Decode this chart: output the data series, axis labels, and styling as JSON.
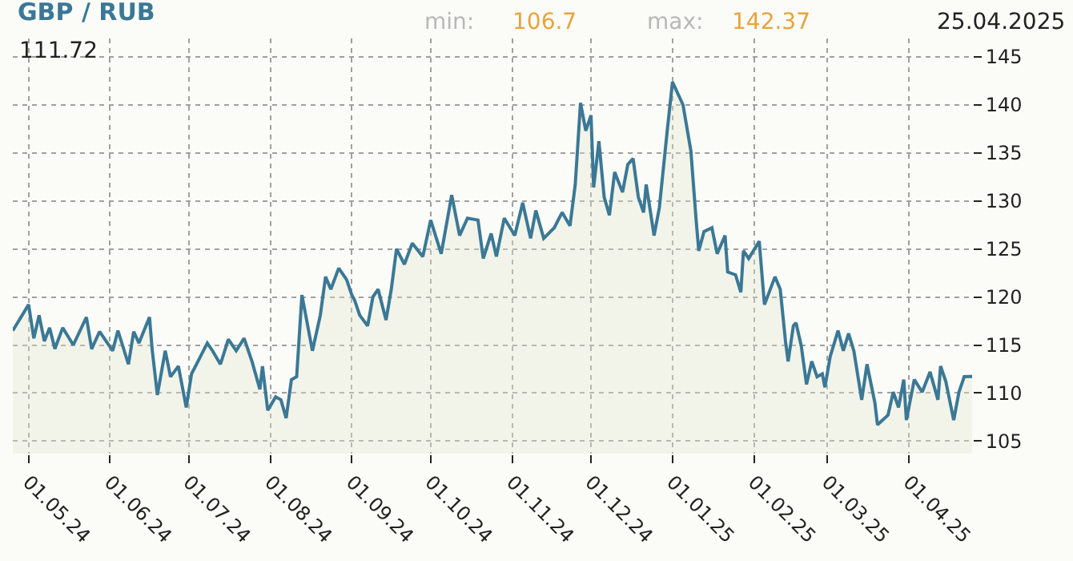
{
  "chart_data": {
    "type": "area",
    "title": "GBP / RUB",
    "annotations": [
      "min:",
      "106.7",
      "max:",
      "142.37",
      "25.04.2025",
      "111.72"
    ],
    "x": [
      "2024-04-25",
      "2024-05-01",
      "2024-05-03",
      "2024-05-05",
      "2024-05-07",
      "2024-05-09",
      "2024-05-11",
      "2024-05-14",
      "2024-05-18",
      "2024-05-23",
      "2024-05-25",
      "2024-05-28",
      "2024-06-02",
      "2024-06-04",
      "2024-06-08",
      "2024-06-10",
      "2024-06-12",
      "2024-06-16",
      "2024-06-17",
      "2024-06-19",
      "2024-06-22",
      "2024-06-24",
      "2024-06-27",
      "2024-06-30",
      "2024-07-02",
      "2024-07-05",
      "2024-07-08",
      "2024-07-10",
      "2024-07-13",
      "2024-07-16",
      "2024-07-19",
      "2024-07-22",
      "2024-07-25",
      "2024-07-28",
      "2024-07-29",
      "2024-07-31",
      "2024-08-03",
      "2024-08-05",
      "2024-08-07",
      "2024-08-09",
      "2024-08-11",
      "2024-08-13",
      "2024-08-17",
      "2024-08-20",
      "2024-08-22",
      "2024-08-24",
      "2024-08-27",
      "2024-08-30",
      "2024-09-01",
      "2024-09-02",
      "2024-09-04",
      "2024-09-07",
      "2024-09-09",
      "2024-09-11",
      "2024-09-14",
      "2024-09-16",
      "2024-09-18",
      "2024-09-21",
      "2024-09-24",
      "2024-09-28",
      "2024-10-01",
      "2024-10-05",
      "2024-10-09",
      "2024-10-12",
      "2024-10-15",
      "2024-10-19",
      "2024-10-21",
      "2024-10-24",
      "2024-10-26",
      "2024-10-29",
      "2024-11-02",
      "2024-11-05",
      "2024-11-08",
      "2024-11-10",
      "2024-11-13",
      "2024-11-17",
      "2024-11-20",
      "2024-11-23",
      "2024-11-25",
      "2024-11-27",
      "2024-11-29",
      "2024-12-01",
      "2024-12-02",
      "2024-12-04",
      "2024-12-06",
      "2024-12-08",
      "2024-12-10",
      "2024-12-13",
      "2024-12-15",
      "2024-12-17",
      "2024-12-19",
      "2024-12-21",
      "2024-12-22",
      "2024-12-25",
      "2024-12-27",
      "2024-12-30",
      "2025-01-01",
      "2025-01-05",
      "2025-01-08",
      "2025-01-10",
      "2025-01-11",
      "2025-01-13",
      "2025-01-16",
      "2025-01-18",
      "2025-01-21",
      "2025-01-22",
      "2025-01-25",
      "2025-01-27",
      "2025-01-28",
      "2025-01-30",
      "2025-02-03",
      "2025-02-05",
      "2025-02-09",
      "2025-02-11",
      "2025-02-13",
      "2025-02-14",
      "2025-02-16",
      "2025-02-17",
      "2025-02-19",
      "2025-02-21",
      "2025-02-23",
      "2025-02-25",
      "2025-02-27",
      "2025-02-28",
      "2025-03-02",
      "2025-03-05",
      "2025-03-07",
      "2025-03-09",
      "2025-03-11",
      "2025-03-14",
      "2025-03-16",
      "2025-03-19",
      "2025-03-20",
      "2025-03-24",
      "2025-03-26",
      "2025-03-28",
      "2025-03-30",
      "2025-03-31",
      "2025-04-03",
      "2025-04-06",
      "2025-04-09",
      "2025-04-12",
      "2025-04-13",
      "2025-04-15",
      "2025-04-18",
      "2025-04-20",
      "2025-04-22",
      "2025-04-25"
    ],
    "series": [
      {
        "color": "#3b7896",
        "values": [
          116.5,
          119.2,
          115.7,
          118.1,
          115.4,
          116.8,
          114.6,
          116.8,
          115,
          117.9,
          114.6,
          116.4,
          114.4,
          116.5,
          113,
          116.4,
          115.2,
          117.9,
          114.6,
          109.8,
          114.4,
          111.7,
          112.8,
          108.5,
          112,
          113.6,
          115.2,
          114.4,
          113,
          115.6,
          114.4,
          115.7,
          113.3,
          110.4,
          112.8,
          108.2,
          109.6,
          109.3,
          107.4,
          111.4,
          111.7,
          120.2,
          114.4,
          118.1,
          122.1,
          120.8,
          123,
          121.8,
          120.2,
          119.7,
          118.1,
          117,
          120,
          120.8,
          117.6,
          120.8,
          125,
          123.4,
          125.6,
          124.2,
          128,
          124.5,
          130.6,
          126.4,
          128.2,
          128,
          124,
          126.6,
          124.2,
          128.2,
          126.4,
          129.8,
          126.1,
          129,
          126.1,
          127.2,
          128.8,
          127.4,
          131.7,
          140.2,
          137.3,
          138.9,
          131.4,
          136.2,
          130.4,
          128.5,
          133,
          130.9,
          133.8,
          134.4,
          130.4,
          128.8,
          131.7,
          126.4,
          129.3,
          137.3,
          142.37,
          140,
          135.2,
          128,
          124.8,
          126.8,
          127.2,
          124.5,
          126.4,
          122.6,
          122.3,
          120.5,
          124.8,
          124,
          125.8,
          119.2,
          122.1,
          120.8,
          115.4,
          113.3,
          117,
          117.3,
          114.9,
          110.9,
          113.3,
          111.7,
          112,
          110.6,
          113.8,
          116.5,
          114.4,
          116.2,
          114.4,
          109.3,
          113,
          109,
          106.7,
          107.7,
          110.1,
          108.5,
          111.4,
          107.2,
          111.4,
          110.1,
          112.2,
          109.3,
          112.8,
          111.2,
          107.2,
          110.1,
          111.7,
          111.72
        ]
      }
    ],
    "xlim": [
      "2024-04-25",
      "2025-04-25"
    ],
    "xticks": [
      {
        "value": "2024-05-01",
        "label": "01.05.24"
      },
      {
        "value": "2024-06-01",
        "label": "01.06.24"
      },
      {
        "value": "2024-07-01",
        "label": "01.07.24"
      },
      {
        "value": "2024-08-01",
        "label": "01.08.24"
      },
      {
        "value": "2024-09-01",
        "label": "01.09.24"
      },
      {
        "value": "2024-10-01",
        "label": "01.10.24"
      },
      {
        "value": "2024-11-01",
        "label": "01.11.24"
      },
      {
        "value": "2024-12-01",
        "label": "01.12.24"
      },
      {
        "value": "2025-01-01",
        "label": "01.01.25"
      },
      {
        "value": "2025-02-01",
        "label": "01.02.25"
      },
      {
        "value": "2025-03-01",
        "label": "01.03.25"
      },
      {
        "value": "2025-04-01",
        "label": "01.04.25"
      }
    ],
    "ylim": [
      103.7,
      146.9
    ],
    "yticks": [
      105,
      110,
      115,
      120,
      125,
      130,
      135,
      140,
      145
    ],
    "grid": true,
    "marker": "none",
    "line_style": "solid"
  }
}
